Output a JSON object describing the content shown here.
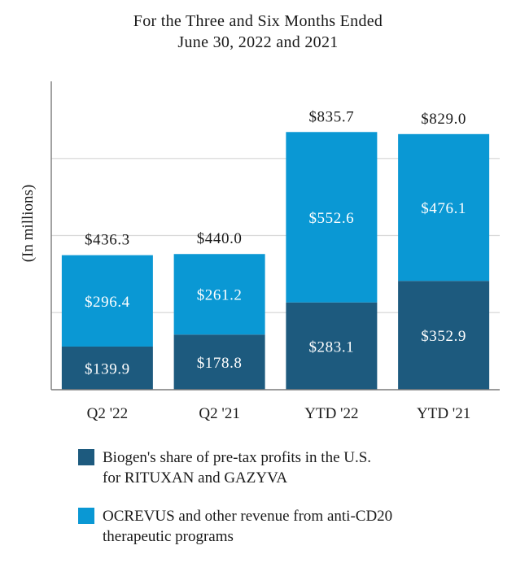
{
  "chart_data": {
    "type": "bar",
    "stacked": true,
    "title": [
      "For the Three and Six Months Ended",
      "June 30, 2022 and 2021"
    ],
    "ylabel": "(In millions)",
    "xlabel": "",
    "ylim": [
      0,
      1000
    ],
    "grid": true,
    "categories": [
      "Q2 '22",
      "Q2 '21",
      "YTD '22",
      "YTD '21"
    ],
    "series": [
      {
        "name": "Biogen's share of pre-tax profits in the U.S. for RITUXAN and GAZYVA",
        "color": "#1d5a7e",
        "values": [
          139.9,
          178.8,
          283.1,
          352.9
        ],
        "labels": [
          "$139.9",
          "$178.8",
          "$283.1",
          "$352.9"
        ]
      },
      {
        "name": "OCREVUS and other revenue from anti-CD20 therapeutic programs",
        "color": "#0a98d4",
        "values": [
          296.4,
          261.2,
          552.6,
          476.1
        ],
        "labels": [
          "$296.4",
          "$261.2",
          "$552.6",
          "$476.1"
        ]
      }
    ],
    "totals": [
      436.3,
      440.0,
      835.7,
      829.0
    ],
    "total_labels": [
      "$436.3",
      "$440.0",
      "$835.7",
      "$829.0"
    ],
    "legend": [
      {
        "line1": "Biogen's share of pre-tax profits in the U.S.",
        "line2": "for RITUXAN and GAZYVA",
        "color": "#1d5a7e"
      },
      {
        "line1": "OCREVUS and other revenue from anti-CD20",
        "line2": "therapeutic programs",
        "color": "#0a98d4"
      }
    ]
  }
}
